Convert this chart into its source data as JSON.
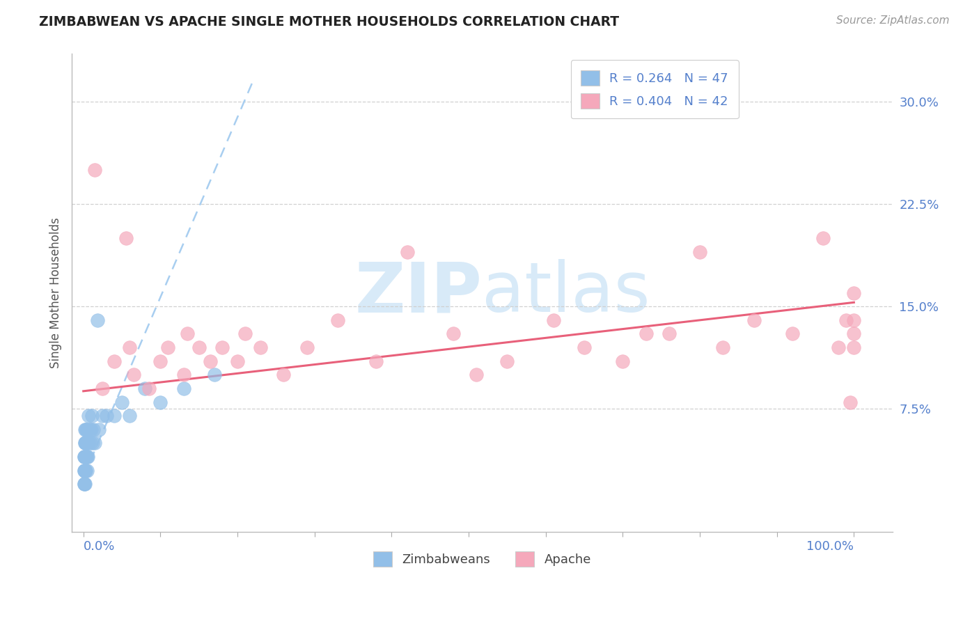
{
  "title": "ZIMBABWEAN VS APACHE SINGLE MOTHER HOUSEHOLDS CORRELATION CHART",
  "source": "Source: ZipAtlas.com",
  "ylabel": "Single Mother Households",
  "yticks": [
    0.075,
    0.15,
    0.225,
    0.3
  ],
  "ytick_labels": [
    "7.5%",
    "15.0%",
    "22.5%",
    "30.0%"
  ],
  "xlim": [
    -0.015,
    1.05
  ],
  "ylim": [
    -0.015,
    0.335
  ],
  "legend_r1": "R = 0.264   N = 47",
  "legend_r2": "R = 0.404   N = 42",
  "zimbabwean_color": "#92bfe8",
  "apache_color": "#f5a8bb",
  "trendline_zim_color": "#a8cef0",
  "trendline_apache_color": "#e8607a",
  "background_color": "#ffffff",
  "watermark_color": "#d8eaf8",
  "zim_trend_x0": 0.0,
  "zim_trend_y0": 0.025,
  "zim_trend_x1": 0.22,
  "zim_trend_y1": 0.315,
  "apache_trend_x0": 0.0,
  "apache_trend_y0": 0.088,
  "apache_trend_x1": 1.0,
  "apache_trend_y1": 0.153,
  "zimbabwean_x": [
    0.001,
    0.001,
    0.001,
    0.001,
    0.001,
    0.001,
    0.002,
    0.002,
    0.002,
    0.002,
    0.002,
    0.002,
    0.002,
    0.002,
    0.003,
    0.003,
    0.003,
    0.003,
    0.003,
    0.004,
    0.004,
    0.004,
    0.005,
    0.005,
    0.005,
    0.006,
    0.006,
    0.007,
    0.007,
    0.008,
    0.009,
    0.01,
    0.011,
    0.012,
    0.013,
    0.015,
    0.018,
    0.02,
    0.025,
    0.03,
    0.04,
    0.05,
    0.06,
    0.08,
    0.1,
    0.13,
    0.17
  ],
  "zimbabwean_y": [
    0.02,
    0.02,
    0.03,
    0.03,
    0.04,
    0.04,
    0.02,
    0.03,
    0.03,
    0.04,
    0.04,
    0.05,
    0.05,
    0.06,
    0.03,
    0.04,
    0.05,
    0.05,
    0.06,
    0.04,
    0.05,
    0.06,
    0.03,
    0.04,
    0.05,
    0.04,
    0.06,
    0.05,
    0.07,
    0.06,
    0.05,
    0.06,
    0.07,
    0.05,
    0.06,
    0.05,
    0.14,
    0.06,
    0.07,
    0.07,
    0.07,
    0.08,
    0.07,
    0.09,
    0.08,
    0.09,
    0.1
  ],
  "apache_x": [
    0.015,
    0.025,
    0.04,
    0.055,
    0.06,
    0.065,
    0.085,
    0.1,
    0.11,
    0.13,
    0.135,
    0.15,
    0.165,
    0.18,
    0.2,
    0.21,
    0.23,
    0.26,
    0.29,
    0.33,
    0.38,
    0.42,
    0.48,
    0.51,
    0.55,
    0.61,
    0.65,
    0.7,
    0.73,
    0.76,
    0.8,
    0.83,
    0.87,
    0.92,
    0.96,
    0.98,
    0.99,
    0.995,
    1.0,
    1.0,
    1.0,
    1.0
  ],
  "apache_y": [
    0.25,
    0.09,
    0.11,
    0.2,
    0.12,
    0.1,
    0.09,
    0.11,
    0.12,
    0.1,
    0.13,
    0.12,
    0.11,
    0.12,
    0.11,
    0.13,
    0.12,
    0.1,
    0.12,
    0.14,
    0.11,
    0.19,
    0.13,
    0.1,
    0.11,
    0.14,
    0.12,
    0.11,
    0.13,
    0.13,
    0.19,
    0.12,
    0.14,
    0.13,
    0.2,
    0.12,
    0.14,
    0.08,
    0.14,
    0.16,
    0.13,
    0.12
  ]
}
